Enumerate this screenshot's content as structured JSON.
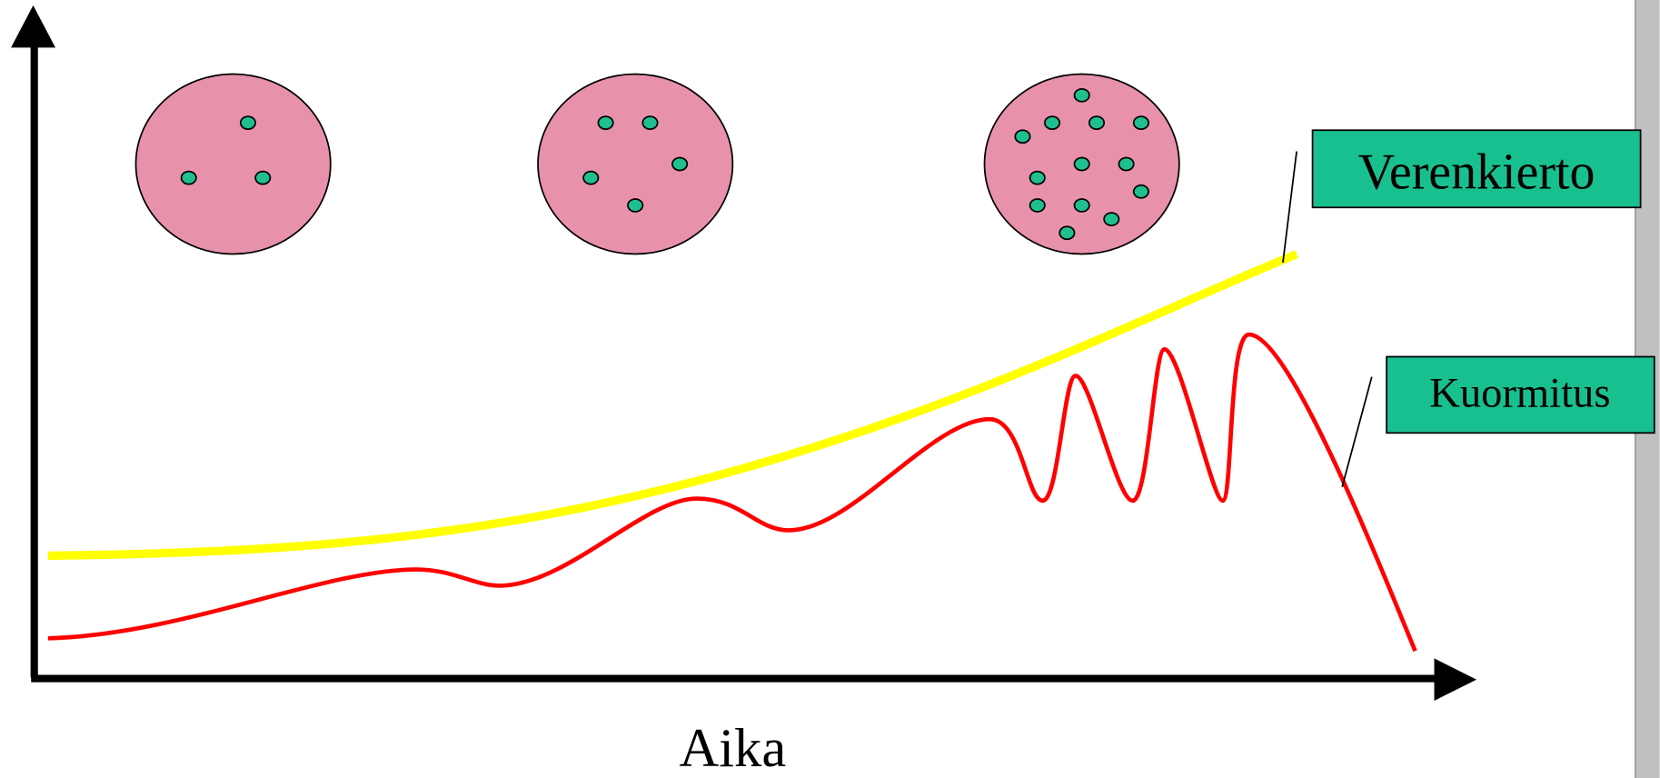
{
  "labels": {
    "circulation": "Verenkierto",
    "load": "Kuormitus"
  },
  "axis": {
    "x_label": "Aika"
  }
}
